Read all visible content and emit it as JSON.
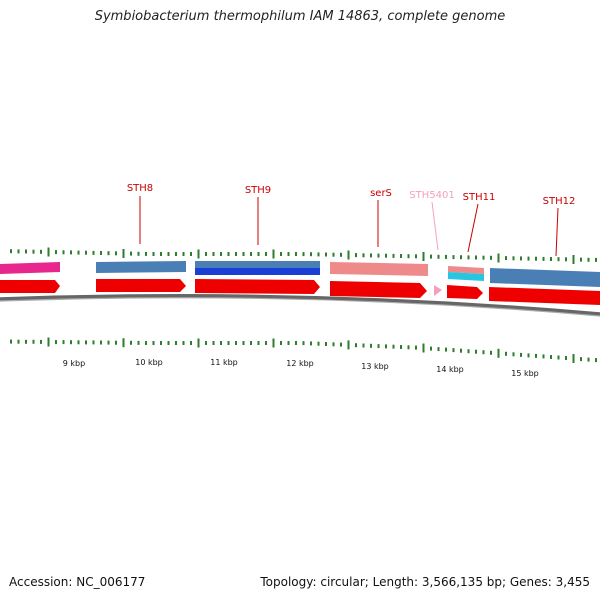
{
  "title": "Symbiobacterium thermophilum IAM 14863, complete genome",
  "footer": {
    "accession": "Accession: NC_006177",
    "stats": "Topology: circular; Length: 3,566,135 bp; Genes: 3,455"
  },
  "colors": {
    "label_red": "#cc0000",
    "label_pink": "#f3a0c0",
    "cds_red": "#ee0000",
    "steelblue": "#4a7fb5",
    "navy": "#1a3fd6",
    "salmon": "#ee8a8a",
    "magenta": "#e8278e",
    "cyan": "#27c6e0",
    "tick_green": "#2e7d2e",
    "backbone": "#888888"
  },
  "gene_labels": [
    {
      "name": "STH8",
      "color": "label_red"
    },
    {
      "name": "STH9",
      "color": "label_red"
    },
    {
      "name": "serS",
      "color": "label_red"
    },
    {
      "name": "STH5401",
      "color": "label_pink"
    },
    {
      "name": "STH11",
      "color": "label_red"
    },
    {
      "name": "STH12",
      "color": "label_red"
    }
  ],
  "kbp_ticks": [
    "9 kbp",
    "10 kbp",
    "11 kbp",
    "12 kbp",
    "13 kbp",
    "14 kbp",
    "15 kbp"
  ]
}
